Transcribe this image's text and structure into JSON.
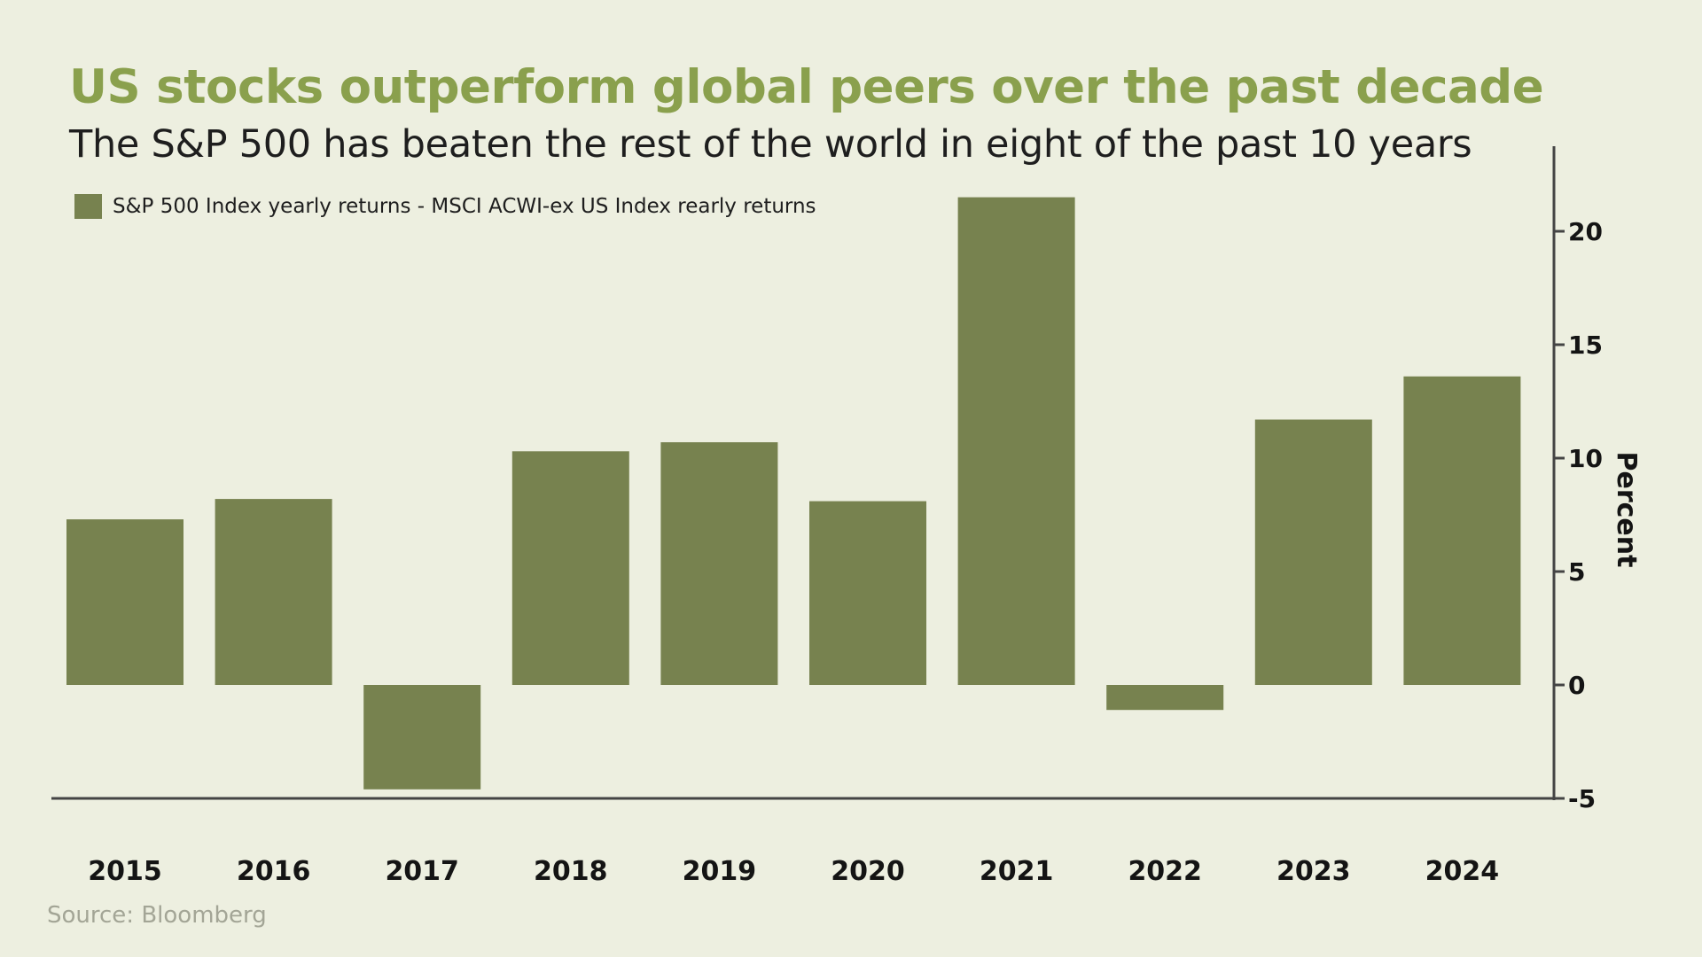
{
  "colors": {
    "background": "#edefe0",
    "bar": "#77824f",
    "title": "#8aa04d",
    "axis": "#444444",
    "source": "#a3a596"
  },
  "source": "Source: Bloomberg",
  "chart_data": {
    "type": "bar",
    "title": "US stocks outperform global peers over the past decade",
    "subtitle": "The S&P 500 has beaten the rest of the world in eight of the past 10 years",
    "categories": [
      "2015",
      "2016",
      "2017",
      "2018",
      "2019",
      "2020",
      "2021",
      "2022",
      "2023",
      "2024"
    ],
    "series": [
      {
        "name": "S&P 500 Index yearly returns - MSCI ACWI-ex US Index rearly returns",
        "values": [
          7.3,
          8.2,
          -4.6,
          10.3,
          10.7,
          8.1,
          21.5,
          -1.1,
          11.7,
          13.6
        ]
      }
    ],
    "xlabel": "",
    "ylabel": "Percent",
    "ylim": [
      -5,
      23
    ],
    "yticks": [
      "20",
      "15",
      "10",
      "5",
      "0",
      "-5"
    ],
    "ytick_values": [
      20,
      15,
      10,
      5,
      0,
      -5
    ],
    "y_axis_position": "right",
    "legend_position": "top-left",
    "grid": false
  }
}
